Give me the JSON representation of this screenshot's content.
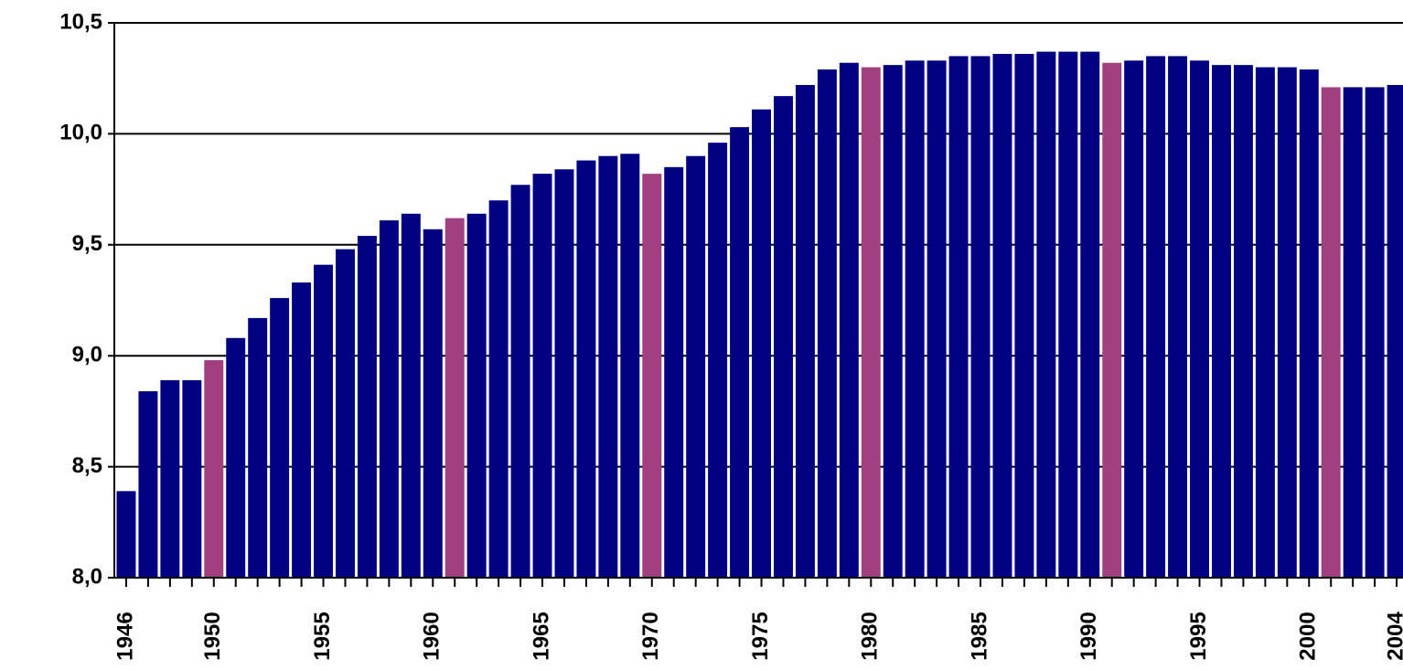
{
  "chart_data": {
    "type": "bar",
    "categories": [
      "1946",
      null,
      null,
      null,
      "1950",
      null,
      null,
      null,
      null,
      "1955",
      null,
      null,
      null,
      null,
      "1960",
      null,
      null,
      null,
      null,
      "1965",
      null,
      null,
      null,
      null,
      "1970",
      null,
      null,
      null,
      null,
      "1975",
      null,
      null,
      null,
      null,
      "1980",
      null,
      null,
      null,
      null,
      "1985",
      null,
      null,
      null,
      null,
      "1990",
      null,
      null,
      null,
      null,
      "1995",
      null,
      null,
      null,
      null,
      "2000",
      null,
      null,
      null,
      "2004"
    ],
    "values": [
      8.39,
      8.84,
      8.89,
      8.89,
      8.98,
      9.08,
      9.17,
      9.26,
      9.33,
      9.41,
      9.48,
      9.54,
      9.61,
      9.64,
      9.57,
      9.62,
      9.64,
      9.7,
      9.77,
      9.82,
      9.84,
      9.88,
      9.9,
      9.91,
      9.82,
      9.85,
      9.9,
      9.96,
      10.03,
      10.11,
      10.17,
      10.22,
      10.29,
      10.32,
      10.3,
      10.31,
      10.33,
      10.33,
      10.35,
      10.35,
      10.36,
      10.36,
      10.37,
      10.37,
      10.37,
      10.32,
      10.33,
      10.35,
      10.35,
      10.33,
      10.31,
      10.31,
      10.3,
      10.3,
      10.29,
      10.21,
      10.21,
      10.21,
      10.22
    ],
    "colors": [
      "#000080",
      "#000080",
      "#000080",
      "#000080",
      "#a0407f",
      "#000080",
      "#000080",
      "#000080",
      "#000080",
      "#000080",
      "#000080",
      "#000080",
      "#000080",
      "#000080",
      "#000080",
      "#a0407f",
      "#000080",
      "#000080",
      "#000080",
      "#000080",
      "#000080",
      "#000080",
      "#000080",
      "#000080",
      "#a0407f",
      "#000080",
      "#000080",
      "#000080",
      "#000080",
      "#000080",
      "#000080",
      "#000080",
      "#000080",
      "#000080",
      "#a0407f",
      "#000080",
      "#000080",
      "#000080",
      "#000080",
      "#000080",
      "#000080",
      "#000080",
      "#000080",
      "#000080",
      "#000080",
      "#a0407f",
      "#000080",
      "#000080",
      "#000080",
      "#000080",
      "#000080",
      "#000080",
      "#000080",
      "#000080",
      "#000080",
      "#a0407f",
      "#000080",
      "#000080",
      "#000080"
    ],
    "ylim": [
      8.0,
      10.5
    ],
    "yticks": [
      {
        "value": 8.0,
        "label": "8,0"
      },
      {
        "value": 8.5,
        "label": "8,5"
      },
      {
        "value": 9.0,
        "label": "9,0"
      },
      {
        "value": 9.5,
        "label": "9,5"
      },
      {
        "value": 10.0,
        "label": "10,0"
      },
      {
        "value": 10.5,
        "label": "10,5"
      }
    ],
    "grid": true
  }
}
